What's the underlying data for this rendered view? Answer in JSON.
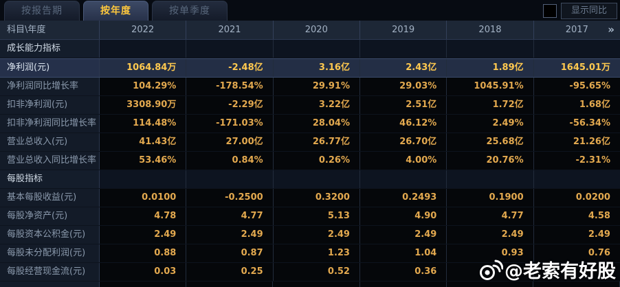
{
  "tabs": [
    {
      "label": "按报告期",
      "active": false
    },
    {
      "label": "按年度",
      "active": true
    },
    {
      "label": "按单季度",
      "active": false
    }
  ],
  "show_yoy": {
    "label": "显示同比",
    "checked": false
  },
  "table": {
    "corner_label": "科目\\年度",
    "years": [
      "2022",
      "2021",
      "2020",
      "2019",
      "2018",
      "2017"
    ],
    "more_icon": "»",
    "rows": [
      {
        "type": "section",
        "label": "成长能力指标"
      },
      {
        "type": "data",
        "label": "净利润(元)",
        "highlight": true,
        "values": [
          "1064.84万",
          "-2.48亿",
          "3.16亿",
          "2.43亿",
          "1.89亿",
          "1645.01万"
        ]
      },
      {
        "type": "data",
        "label": "净利润同比增长率",
        "values": [
          "104.29%",
          "-178.54%",
          "29.91%",
          "29.03%",
          "1045.91%",
          "-95.65%"
        ]
      },
      {
        "type": "data",
        "label": "扣非净利润(元)",
        "values": [
          "3308.90万",
          "-2.29亿",
          "3.22亿",
          "2.51亿",
          "1.72亿",
          "1.68亿"
        ]
      },
      {
        "type": "data",
        "label": "扣非净利润同比增长率",
        "values": [
          "114.48%",
          "-171.03%",
          "28.04%",
          "46.12%",
          "2.49%",
          "-56.34%"
        ]
      },
      {
        "type": "data",
        "label": "营业总收入(元)",
        "values": [
          "41.43亿",
          "27.00亿",
          "26.77亿",
          "26.70亿",
          "25.68亿",
          "21.26亿"
        ]
      },
      {
        "type": "data",
        "label": "营业总收入同比增长率",
        "values": [
          "53.46%",
          "0.84%",
          "0.26%",
          "4.00%",
          "20.76%",
          "-2.31%"
        ]
      },
      {
        "type": "section",
        "label": "每股指标"
      },
      {
        "type": "data",
        "label": "基本每股收益(元)",
        "values": [
          "0.0100",
          "-0.2500",
          "0.3200",
          "0.2493",
          "0.1900",
          "0.0200"
        ]
      },
      {
        "type": "data",
        "label": "每股净资产(元)",
        "values": [
          "4.78",
          "4.77",
          "5.13",
          "4.90",
          "4.77",
          "4.58"
        ]
      },
      {
        "type": "data",
        "label": "每股资本公积金(元)",
        "values": [
          "2.49",
          "2.49",
          "2.49",
          "2.49",
          "2.49",
          "2.49"
        ]
      },
      {
        "type": "data",
        "label": "每股未分配利润(元)",
        "values": [
          "0.88",
          "0.87",
          "1.23",
          "1.04",
          "0.93",
          "0.76"
        ]
      },
      {
        "type": "data",
        "label": "每股经营现金流(元)",
        "values": [
          "0.03",
          "0.25",
          "0.52",
          "0.36",
          "",
          ""
        ]
      }
    ]
  },
  "watermark": {
    "handle": "@老索有好股",
    "icon": "weibo-icon"
  },
  "colors": {
    "accent_gold": "#ffc83d",
    "value_text": "#e3a94f",
    "highlight_value": "#ffc94f",
    "highlight_bg": "#232e45",
    "header_bg": "#1d2736",
    "label_bg": "#131b28",
    "cell_bg": "#05070a"
  }
}
